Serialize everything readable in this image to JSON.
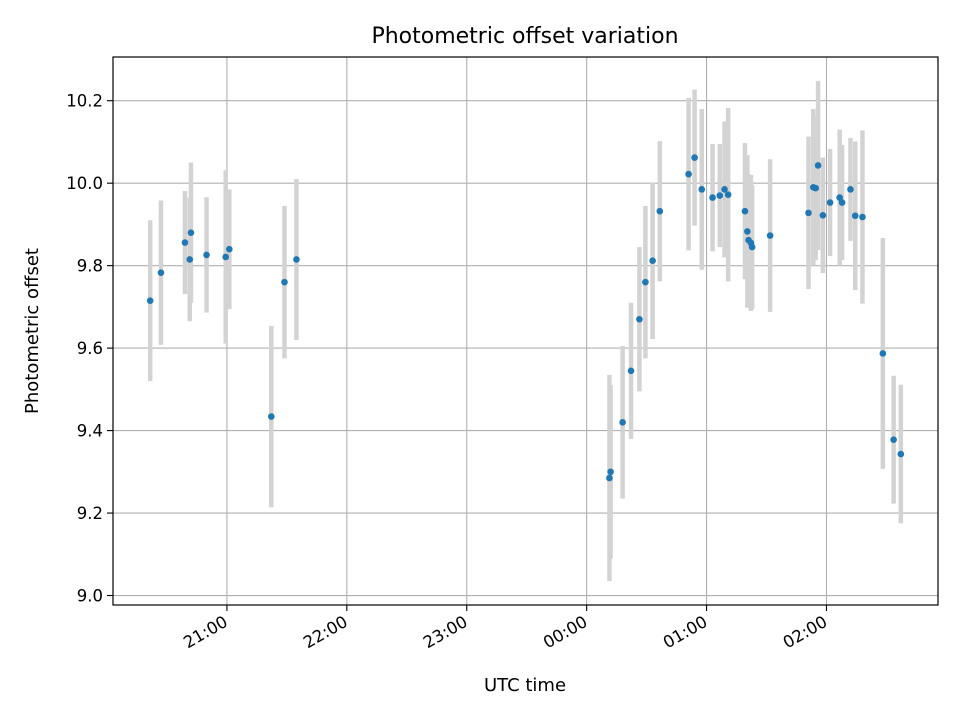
{
  "chart_data": {
    "type": "scatter",
    "title": "Photometric offset variation",
    "xlabel": "UTC time",
    "ylabel": "Photometric offset",
    "xlim": [
      -3.95,
      2.93
    ],
    "ylim": [
      8.977,
      10.306
    ],
    "grid": true,
    "colors": {
      "point": "#1f77b4",
      "errorbar": "#d3d3d3",
      "grid": "#b0b0b0",
      "axis": "#000000"
    },
    "x_ticks": [
      {
        "value": -3,
        "label": "21:00"
      },
      {
        "value": -2,
        "label": "22:00"
      },
      {
        "value": -1,
        "label": "23:00"
      },
      {
        "value": 0,
        "label": "00:00"
      },
      {
        "value": 1,
        "label": "01:00"
      },
      {
        "value": 2,
        "label": "02:00"
      }
    ],
    "y_ticks": [
      {
        "value": 9.0,
        "label": "9.0"
      },
      {
        "value": 9.2,
        "label": "9.2"
      },
      {
        "value": 9.4,
        "label": "9.4"
      },
      {
        "value": 9.6,
        "label": "9.6"
      },
      {
        "value": 9.8,
        "label": "9.8"
      },
      {
        "value": 10.0,
        "label": "10.0"
      },
      {
        "value": 10.2,
        "label": "10.2"
      }
    ],
    "x_unit": "hours relative to 00:00 UTC",
    "series": [
      {
        "name": "Photometric offset",
        "x": [
          -3.64,
          -3.55,
          -3.35,
          -3.31,
          -3.3,
          -3.17,
          -3.01,
          -2.98,
          -2.63,
          -2.52,
          -2.42,
          0.19,
          0.2,
          0.3,
          0.37,
          0.44,
          0.49,
          0.55,
          0.61,
          0.85,
          0.9,
          0.96,
          1.05,
          1.11,
          1.15,
          1.18,
          1.32,
          1.34,
          1.35,
          1.37,
          1.38,
          1.53,
          1.85,
          1.89,
          1.91,
          1.93,
          1.97,
          2.03,
          2.11,
          2.13,
          2.2,
          2.24,
          2.3,
          2.47,
          2.56,
          2.62
        ],
        "y": [
          9.715,
          9.783,
          9.856,
          9.815,
          9.88,
          9.826,
          9.821,
          9.84,
          9.434,
          9.76,
          9.815,
          9.285,
          9.3,
          9.42,
          9.545,
          9.67,
          9.76,
          9.812,
          9.932,
          10.022,
          10.062,
          9.985,
          9.965,
          9.97,
          9.985,
          9.972,
          9.932,
          9.883,
          9.862,
          9.855,
          9.845,
          9.873,
          9.928,
          9.99,
          9.988,
          10.043,
          9.922,
          9.953,
          9.965,
          9.953,
          9.985,
          9.921,
          9.918,
          9.587,
          9.378,
          9.343
        ],
        "yerr": [
          0.195,
          0.175,
          0.125,
          0.15,
          0.17,
          0.14,
          0.21,
          0.145,
          0.22,
          0.185,
          0.195,
          0.25,
          0.21,
          0.185,
          0.165,
          0.175,
          0.185,
          0.19,
          0.17,
          0.185,
          0.165,
          0.195,
          0.13,
          0.125,
          0.165,
          0.21,
          0.165,
          0.185,
          0.16,
          0.165,
          0.15,
          0.185,
          0.185,
          0.19,
          0.175,
          0.205,
          0.14,
          0.13,
          0.165,
          0.14,
          0.125,
          0.18,
          0.21,
          0.28,
          0.155,
          0.168
        ]
      }
    ]
  }
}
